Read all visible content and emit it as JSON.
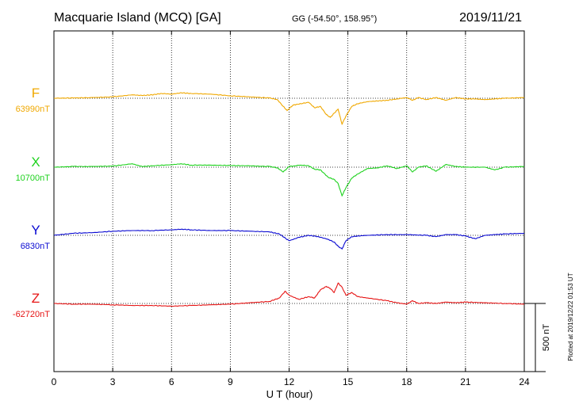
{
  "header": {
    "station": "Macquarie Island (MCQ)  [GA]",
    "coords": "GG (-54.50°, 158.95°)",
    "date": "2019/11/21"
  },
  "footer": {
    "xlabel": "U T (hour)",
    "plotted": "Plotted at 2019/12/22 01:53 UT"
  },
  "scale_bar": {
    "label": "500 nT",
    "value_nT": 500
  },
  "colors": {
    "F": "#f0a800",
    "X": "#1ed21e",
    "Y": "#0a0ad2",
    "Z": "#e61414",
    "grid": "#000000"
  },
  "chart_data": {
    "type": "line",
    "title": "Macquarie Island (MCQ)  [GA]",
    "xlabel": "U T (hour)",
    "ylabel": "",
    "xlim": [
      0,
      24
    ],
    "x_ticks": [
      "0",
      "3",
      "6",
      "9",
      "12",
      "15",
      "18",
      "21",
      "24"
    ],
    "grid": true,
    "series": [
      {
        "name": "F",
        "baseline_label": "63990nT",
        "color": "#f0a800",
        "points": [
          [
            0,
            0
          ],
          [
            1,
            2
          ],
          [
            2,
            5
          ],
          [
            3,
            10
          ],
          [
            4,
            25
          ],
          [
            4.5,
            20
          ],
          [
            5,
            25
          ],
          [
            5.5,
            35
          ],
          [
            6,
            30
          ],
          [
            6.5,
            40
          ],
          [
            7,
            35
          ],
          [
            8,
            30
          ],
          [
            9,
            18
          ],
          [
            10,
            10
          ],
          [
            11,
            2
          ],
          [
            11.4,
            -10
          ],
          [
            11.7,
            -60
          ],
          [
            11.9,
            -90
          ],
          [
            12.2,
            -50
          ],
          [
            12.6,
            -40
          ],
          [
            13,
            -30
          ],
          [
            13.3,
            -70
          ],
          [
            13.6,
            -60
          ],
          [
            13.9,
            -120
          ],
          [
            14.1,
            -140
          ],
          [
            14.3,
            -110
          ],
          [
            14.5,
            -80
          ],
          [
            14.7,
            -190
          ],
          [
            14.9,
            -130
          ],
          [
            15.2,
            -60
          ],
          [
            15.5,
            -40
          ],
          [
            16,
            -25
          ],
          [
            16.5,
            -20
          ],
          [
            17,
            -15
          ],
          [
            17.5,
            -5
          ],
          [
            18,
            5
          ],
          [
            18.3,
            -15
          ],
          [
            18.6,
            5
          ],
          [
            19,
            -10
          ],
          [
            19.5,
            5
          ],
          [
            20,
            -15
          ],
          [
            20.5,
            5
          ],
          [
            21,
            -5
          ],
          [
            21.5,
            -5
          ],
          [
            22,
            -10
          ],
          [
            22.5,
            -5
          ],
          [
            23,
            0
          ],
          [
            24,
            5
          ]
        ]
      },
      {
        "name": "X",
        "baseline_label": "10700nT",
        "color": "#1ed21e",
        "points": [
          [
            0,
            0
          ],
          [
            1,
            5
          ],
          [
            2,
            5
          ],
          [
            3,
            8
          ],
          [
            4,
            25
          ],
          [
            4.5,
            5
          ],
          [
            5,
            10
          ],
          [
            6,
            18
          ],
          [
            6.5,
            25
          ],
          [
            7,
            15
          ],
          [
            8,
            15
          ],
          [
            9,
            12
          ],
          [
            10,
            10
          ],
          [
            11,
            5
          ],
          [
            11.4,
            -5
          ],
          [
            11.7,
            -35
          ],
          [
            12,
            5
          ],
          [
            12.6,
            15
          ],
          [
            13,
            10
          ],
          [
            13.3,
            -15
          ],
          [
            13.6,
            -20
          ],
          [
            14,
            -75
          ],
          [
            14.3,
            -90
          ],
          [
            14.5,
            -120
          ],
          [
            14.7,
            -210
          ],
          [
            14.9,
            -150
          ],
          [
            15.2,
            -80
          ],
          [
            15.5,
            -50
          ],
          [
            16,
            -10
          ],
          [
            16.5,
            -5
          ],
          [
            17,
            10
          ],
          [
            17.5,
            -10
          ],
          [
            18,
            10
          ],
          [
            18.3,
            -35
          ],
          [
            18.6,
            0
          ],
          [
            19,
            10
          ],
          [
            19.5,
            -30
          ],
          [
            20,
            20
          ],
          [
            20.5,
            5
          ],
          [
            21,
            0
          ],
          [
            22,
            0
          ],
          [
            22.5,
            -20
          ],
          [
            23,
            0
          ],
          [
            24,
            5
          ]
        ]
      },
      {
        "name": "Y",
        "baseline_label": "6830nT",
        "color": "#0a0ad2",
        "points": [
          [
            0,
            0
          ],
          [
            1,
            15
          ],
          [
            2,
            20
          ],
          [
            3,
            30
          ],
          [
            4,
            35
          ],
          [
            5,
            35
          ],
          [
            6,
            40
          ],
          [
            6.5,
            45
          ],
          [
            7,
            40
          ],
          [
            8,
            35
          ],
          [
            9,
            35
          ],
          [
            10,
            30
          ],
          [
            11,
            25
          ],
          [
            11.5,
            10
          ],
          [
            11.8,
            -20
          ],
          [
            12,
            -40
          ],
          [
            12.5,
            -15
          ],
          [
            13,
            0
          ],
          [
            13.5,
            -10
          ],
          [
            14,
            -30
          ],
          [
            14.3,
            -50
          ],
          [
            14.5,
            -80
          ],
          [
            14.7,
            -100
          ],
          [
            14.9,
            -40
          ],
          [
            15.2,
            -10
          ],
          [
            15.5,
            -5
          ],
          [
            16,
            0
          ],
          [
            17,
            5
          ],
          [
            18,
            5
          ],
          [
            19,
            0
          ],
          [
            19.5,
            -10
          ],
          [
            20,
            5
          ],
          [
            20.5,
            5
          ],
          [
            21,
            -5
          ],
          [
            21.5,
            -25
          ],
          [
            22,
            0
          ],
          [
            22.5,
            5
          ],
          [
            23,
            10
          ],
          [
            24,
            15
          ]
        ]
      },
      {
        "name": "Z",
        "baseline_label": "-62720nT",
        "color": "#e61414",
        "points": [
          [
            0,
            0
          ],
          [
            1,
            -5
          ],
          [
            2,
            -5
          ],
          [
            3,
            -10
          ],
          [
            4,
            -15
          ],
          [
            5,
            -15
          ],
          [
            6,
            -20
          ],
          [
            7,
            -15
          ],
          [
            8,
            -10
          ],
          [
            9,
            -5
          ],
          [
            10,
            5
          ],
          [
            11,
            15
          ],
          [
            11.5,
            40
          ],
          [
            11.8,
            90
          ],
          [
            12,
            60
          ],
          [
            12.5,
            30
          ],
          [
            13,
            50
          ],
          [
            13.3,
            40
          ],
          [
            13.6,
            100
          ],
          [
            13.9,
            125
          ],
          [
            14.1,
            110
          ],
          [
            14.3,
            80
          ],
          [
            14.5,
            150
          ],
          [
            14.7,
            120
          ],
          [
            14.9,
            60
          ],
          [
            15.2,
            80
          ],
          [
            15.5,
            50
          ],
          [
            16,
            40
          ],
          [
            17,
            20
          ],
          [
            17.5,
            5
          ],
          [
            18,
            -5
          ],
          [
            18.3,
            20
          ],
          [
            18.6,
            0
          ],
          [
            19,
            5
          ],
          [
            19.5,
            0
          ],
          [
            20,
            10
          ],
          [
            20.5,
            5
          ],
          [
            21,
            10
          ],
          [
            22,
            5
          ],
          [
            23,
            0
          ],
          [
            24,
            -5
          ]
        ]
      }
    ]
  }
}
